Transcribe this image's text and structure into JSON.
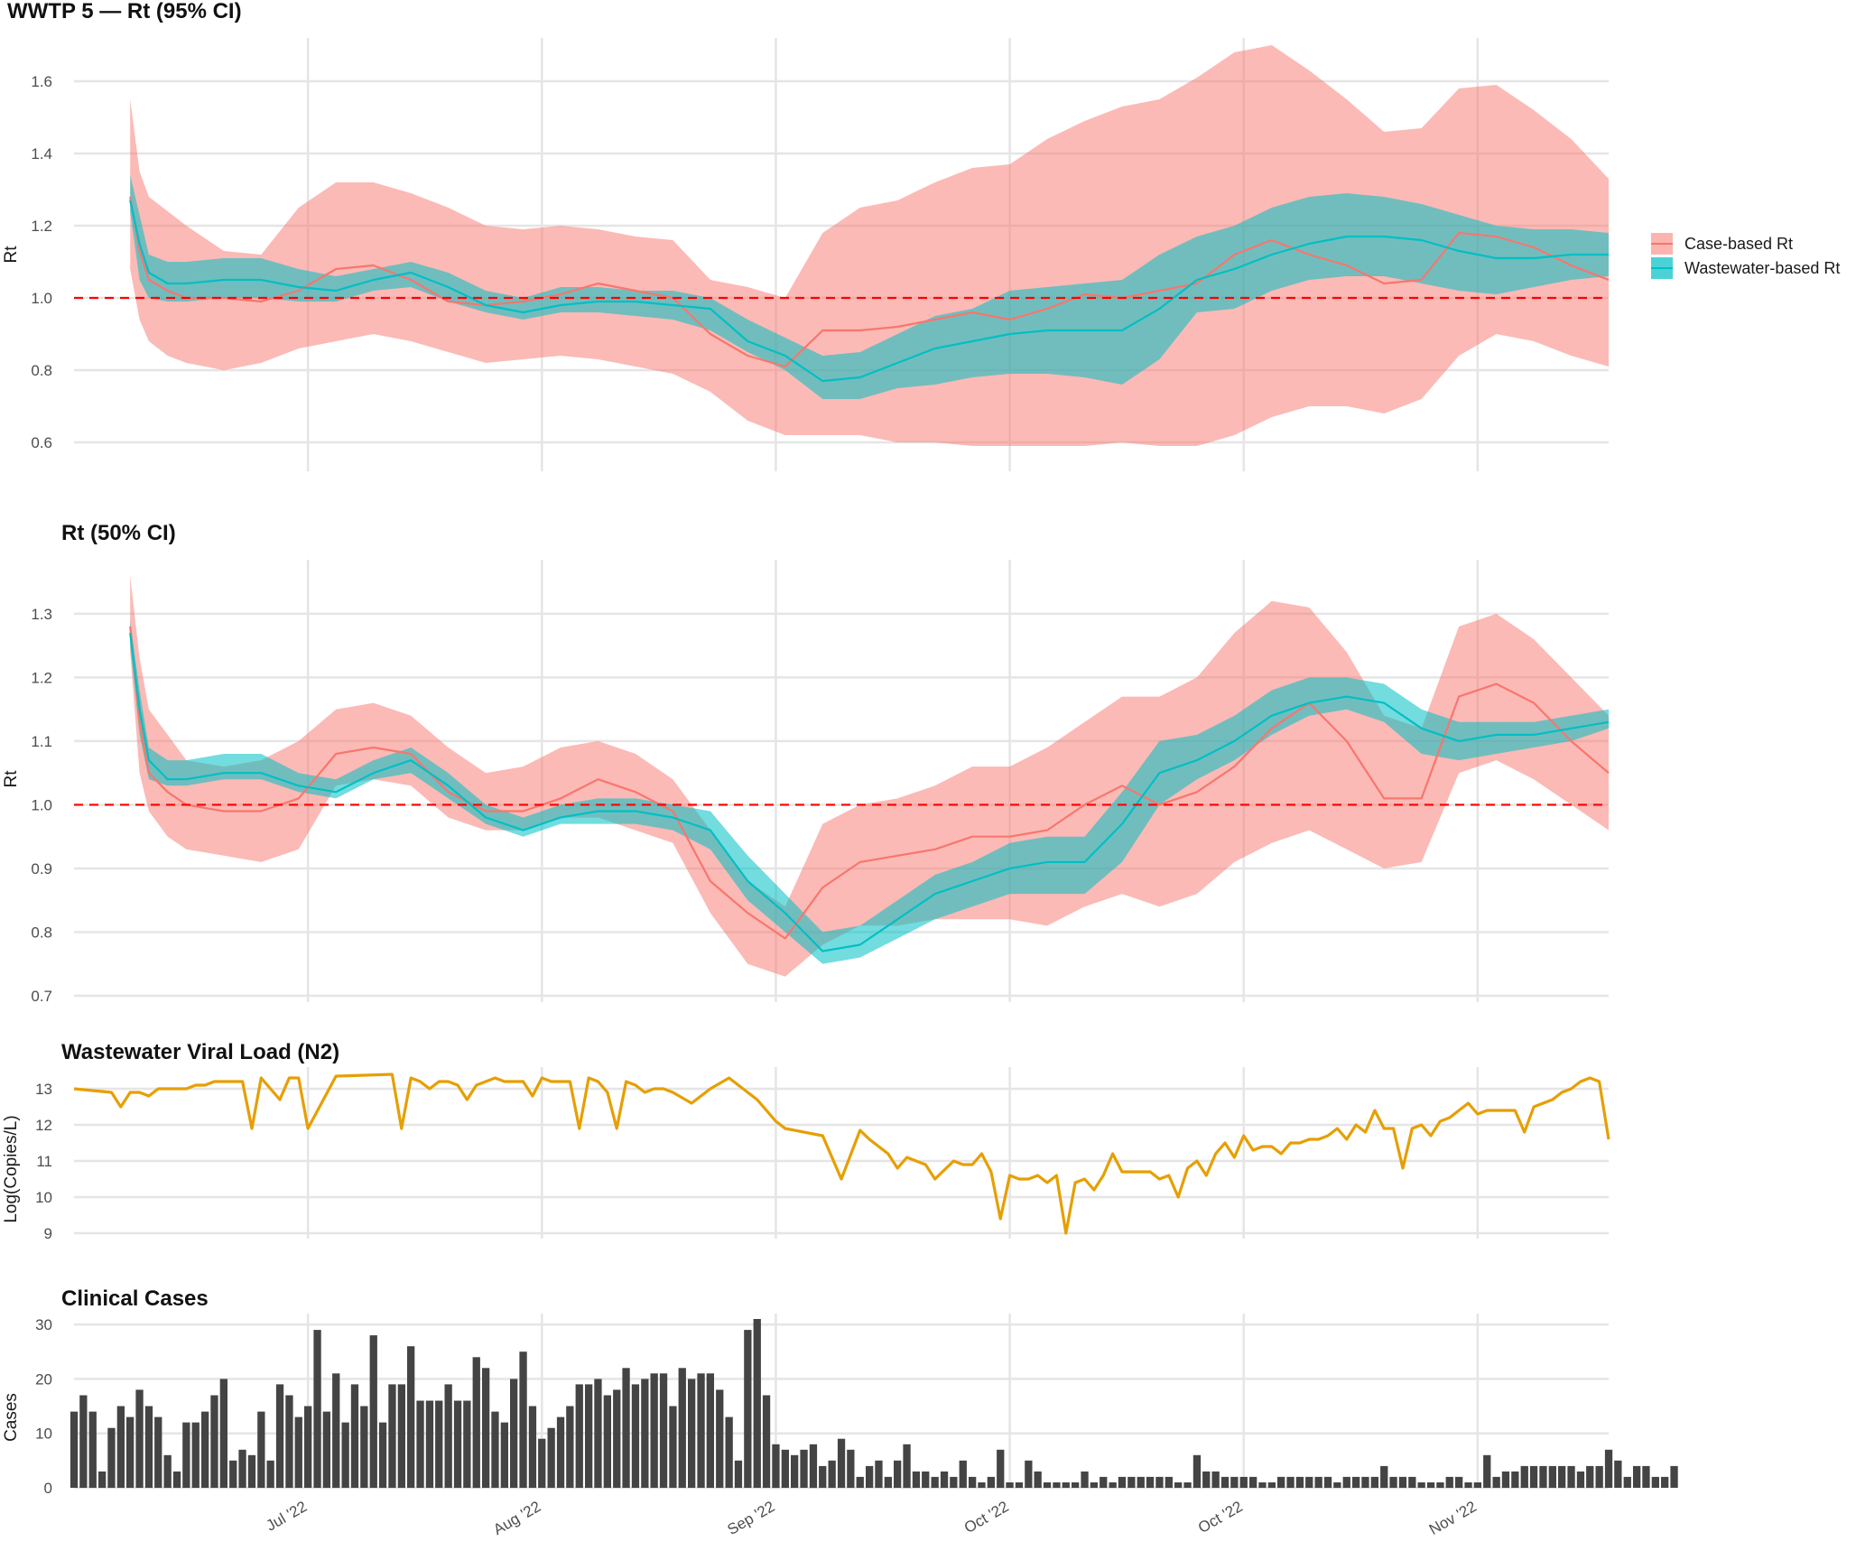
{
  "colors": {
    "case": "#F8766D",
    "case_band": "#F8766D",
    "wastewater": "#00BFC4",
    "threshold": "#FF0000",
    "viral": "#E69F00",
    "bars": "#444444",
    "grid": "#E5E5E5"
  },
  "legend": {
    "items": [
      {
        "label": "Case-based Rt",
        "color": "#F8766D"
      },
      {
        "label": "Wastewater-based Rt",
        "color": "#00BFC4"
      }
    ],
    "position": "right"
  },
  "x_axis": {
    "ticks": [
      {
        "day": 25,
        "label": "Jul '22"
      },
      {
        "day": 50,
        "label": "Aug '22"
      },
      {
        "day": 75,
        "label": "Sep '22"
      },
      {
        "day": 100,
        "label": "Oct '22"
      },
      {
        "day": 125,
        "label": "Oct '22"
      },
      {
        "day": 150,
        "label": "Nov '22"
      }
    ],
    "range": [
      0,
      164
    ]
  },
  "chart_data": [
    {
      "type": "line",
      "title": "WWTP 5 — Rt (95% CI)",
      "ylabel": "Rt",
      "ylim": [
        0.52,
        1.72
      ],
      "yticks": [
        "0.6",
        "0.8",
        "1.0",
        "1.2",
        "1.4",
        "1.6"
      ],
      "threshold": 1.0,
      "grid": true,
      "x": [
        6,
        7,
        8,
        10,
        12,
        16,
        20,
        24,
        28,
        32,
        36,
        40,
        44,
        48,
        52,
        56,
        60,
        64,
        68,
        72,
        76,
        80,
        84,
        88,
        92,
        96,
        100,
        104,
        108,
        112,
        116,
        120,
        124,
        128,
        132,
        136,
        140,
        144,
        148,
        152,
        156,
        160,
        164
      ],
      "series": [
        {
          "name": "Case-based Rt",
          "band": true,
          "values": [
            1.28,
            1.13,
            1.05,
            1.02,
            1.0,
            1.0,
            0.99,
            1.02,
            1.08,
            1.09,
            1.05,
            0.99,
            0.98,
            0.99,
            1.01,
            1.04,
            1.02,
            1.0,
            0.9,
            0.84,
            0.81,
            0.91,
            0.91,
            0.92,
            0.94,
            0.96,
            0.94,
            0.97,
            1.01,
            1.0,
            1.02,
            1.04,
            1.12,
            1.16,
            1.12,
            1.09,
            1.04,
            1.05,
            1.18,
            1.17,
            1.14,
            1.09,
            1.05
          ],
          "lower": [
            1.08,
            0.94,
            0.88,
            0.84,
            0.82,
            0.8,
            0.82,
            0.86,
            0.88,
            0.9,
            0.88,
            0.85,
            0.82,
            0.83,
            0.84,
            0.83,
            0.81,
            0.79,
            0.74,
            0.66,
            0.62,
            0.62,
            0.62,
            0.6,
            0.6,
            0.59,
            0.59,
            0.59,
            0.59,
            0.6,
            0.59,
            0.59,
            0.62,
            0.67,
            0.7,
            0.7,
            0.68,
            0.72,
            0.84,
            0.9,
            0.88,
            0.84,
            0.81
          ],
          "upper": [
            1.55,
            1.35,
            1.28,
            1.24,
            1.2,
            1.13,
            1.12,
            1.25,
            1.32,
            1.32,
            1.29,
            1.25,
            1.2,
            1.19,
            1.2,
            1.19,
            1.17,
            1.16,
            1.05,
            1.03,
            1.0,
            1.18,
            1.25,
            1.27,
            1.32,
            1.36,
            1.37,
            1.44,
            1.49,
            1.53,
            1.55,
            1.61,
            1.68,
            1.7,
            1.63,
            1.55,
            1.46,
            1.47,
            1.58,
            1.59,
            1.52,
            1.44,
            1.33
          ]
        },
        {
          "name": "Wastewater-based Rt",
          "band": true,
          "values": [
            1.27,
            1.15,
            1.07,
            1.04,
            1.04,
            1.05,
            1.05,
            1.03,
            1.02,
            1.05,
            1.07,
            1.03,
            0.98,
            0.96,
            0.98,
            0.99,
            0.99,
            0.98,
            0.97,
            0.88,
            0.84,
            0.77,
            0.78,
            0.82,
            0.86,
            0.88,
            0.9,
            0.91,
            0.91,
            0.91,
            0.97,
            1.05,
            1.08,
            1.12,
            1.15,
            1.17,
            1.17,
            1.16,
            1.13,
            1.11,
            1.11,
            1.12,
            1.12
          ],
          "lower": [
            1.24,
            1.05,
            1.0,
            0.99,
            0.99,
            1.0,
            1.0,
            0.99,
            0.99,
            1.02,
            1.03,
            0.99,
            0.96,
            0.94,
            0.96,
            0.96,
            0.95,
            0.94,
            0.91,
            0.85,
            0.8,
            0.72,
            0.72,
            0.75,
            0.76,
            0.78,
            0.79,
            0.79,
            0.78,
            0.76,
            0.83,
            0.96,
            0.97,
            1.02,
            1.05,
            1.06,
            1.06,
            1.04,
            1.02,
            1.01,
            1.03,
            1.05,
            1.06
          ],
          "upper": [
            1.34,
            1.23,
            1.12,
            1.1,
            1.1,
            1.11,
            1.11,
            1.08,
            1.06,
            1.08,
            1.1,
            1.07,
            1.02,
            1.0,
            1.03,
            1.03,
            1.02,
            1.02,
            1.0,
            0.94,
            0.89,
            0.84,
            0.85,
            0.9,
            0.95,
            0.97,
            1.02,
            1.03,
            1.04,
            1.05,
            1.12,
            1.17,
            1.2,
            1.25,
            1.28,
            1.29,
            1.28,
            1.26,
            1.23,
            1.2,
            1.19,
            1.19,
            1.18
          ]
        }
      ]
    },
    {
      "type": "line",
      "title": "Rt (50% CI)",
      "ylabel": "Rt",
      "ylim": [
        0.69,
        1.385
      ],
      "yticks": [
        "0.7",
        "0.8",
        "0.9",
        "1.0",
        "1.1",
        "1.2",
        "1.3"
      ],
      "threshold": 1.0,
      "grid": true,
      "x": [
        6,
        7,
        8,
        10,
        12,
        16,
        20,
        24,
        28,
        32,
        36,
        40,
        44,
        48,
        52,
        56,
        60,
        64,
        68,
        72,
        76,
        80,
        84,
        88,
        92,
        96,
        100,
        104,
        108,
        112,
        116,
        120,
        124,
        128,
        132,
        136,
        140,
        144,
        148,
        152,
        156,
        160,
        164
      ],
      "series": [
        {
          "name": "Case-based Rt",
          "band": true,
          "values": [
            1.28,
            1.13,
            1.05,
            1.02,
            1.0,
            0.99,
            0.99,
            1.01,
            1.08,
            1.09,
            1.08,
            1.02,
            0.99,
            0.99,
            1.01,
            1.04,
            1.02,
            0.99,
            0.88,
            0.83,
            0.79,
            0.87,
            0.91,
            0.92,
            0.93,
            0.95,
            0.95,
            0.96,
            1.0,
            1.03,
            1.0,
            1.02,
            1.06,
            1.12,
            1.16,
            1.1,
            1.01,
            1.01,
            1.17,
            1.19,
            1.16,
            1.1,
            1.05
          ],
          "lower": [
            1.24,
            1.05,
            0.99,
            0.95,
            0.93,
            0.92,
            0.91,
            0.93,
            1.03,
            1.04,
            1.03,
            0.98,
            0.96,
            0.96,
            0.98,
            0.98,
            0.96,
            0.94,
            0.83,
            0.75,
            0.73,
            0.78,
            0.81,
            0.81,
            0.82,
            0.82,
            0.82,
            0.81,
            0.84,
            0.86,
            0.84,
            0.86,
            0.91,
            0.94,
            0.96,
            0.93,
            0.9,
            0.91,
            1.05,
            1.07,
            1.04,
            1.0,
            0.96
          ],
          "upper": [
            1.36,
            1.23,
            1.15,
            1.11,
            1.07,
            1.06,
            1.07,
            1.1,
            1.15,
            1.16,
            1.14,
            1.09,
            1.05,
            1.06,
            1.09,
            1.1,
            1.08,
            1.04,
            0.96,
            0.88,
            0.84,
            0.97,
            1.0,
            1.01,
            1.03,
            1.06,
            1.06,
            1.09,
            1.13,
            1.17,
            1.17,
            1.2,
            1.27,
            1.32,
            1.31,
            1.24,
            1.14,
            1.12,
            1.28,
            1.3,
            1.26,
            1.2,
            1.14
          ]
        },
        {
          "name": "Wastewater-based Rt",
          "band": true,
          "values": [
            1.27,
            1.15,
            1.07,
            1.04,
            1.04,
            1.05,
            1.05,
            1.03,
            1.02,
            1.05,
            1.07,
            1.03,
            0.98,
            0.96,
            0.98,
            0.99,
            0.99,
            0.98,
            0.96,
            0.88,
            0.83,
            0.77,
            0.78,
            0.82,
            0.86,
            0.88,
            0.9,
            0.91,
            0.91,
            0.97,
            1.05,
            1.07,
            1.1,
            1.14,
            1.16,
            1.17,
            1.16,
            1.12,
            1.1,
            1.11,
            1.11,
            1.12,
            1.13
          ],
          "lower": [
            1.25,
            1.11,
            1.04,
            1.03,
            1.03,
            1.04,
            1.04,
            1.02,
            1.01,
            1.04,
            1.05,
            1.01,
            0.97,
            0.95,
            0.97,
            0.97,
            0.97,
            0.96,
            0.93,
            0.85,
            0.8,
            0.75,
            0.76,
            0.79,
            0.82,
            0.84,
            0.86,
            0.86,
            0.86,
            0.91,
            1.0,
            1.04,
            1.07,
            1.11,
            1.14,
            1.15,
            1.13,
            1.08,
            1.07,
            1.08,
            1.09,
            1.1,
            1.12
          ],
          "upper": [
            1.29,
            1.18,
            1.09,
            1.07,
            1.07,
            1.08,
            1.08,
            1.05,
            1.04,
            1.07,
            1.09,
            1.05,
            1.0,
            0.98,
            1.0,
            1.01,
            1.01,
            1.0,
            0.99,
            0.92,
            0.86,
            0.8,
            0.81,
            0.85,
            0.89,
            0.91,
            0.94,
            0.95,
            0.95,
            1.02,
            1.1,
            1.11,
            1.14,
            1.18,
            1.2,
            1.2,
            1.19,
            1.15,
            1.13,
            1.13,
            1.13,
            1.14,
            1.15
          ]
        }
      ]
    },
    {
      "type": "line",
      "title": "Wastewater Viral Load (N2)",
      "ylabel": "Log(Copies/L)",
      "ylim": [
        8.85,
        13.6
      ],
      "yticks": [
        "9",
        "10",
        "11",
        "12",
        "13"
      ],
      "grid": true,
      "x": [
        0,
        4,
        5,
        6,
        7,
        8,
        9,
        10,
        11,
        12,
        13,
        14,
        15,
        16,
        17,
        18,
        19,
        20,
        22,
        23,
        24,
        25,
        28,
        34,
        35,
        36,
        37,
        38,
        39,
        40,
        41,
        42,
        43,
        44,
        45,
        46,
        47,
        48,
        49,
        50,
        51,
        52,
        53,
        54,
        55,
        56,
        57,
        58,
        59,
        60,
        61,
        62,
        63,
        64,
        66,
        68,
        70,
        72,
        73,
        74,
        75,
        76,
        80,
        82,
        84,
        85,
        86,
        87,
        88,
        89,
        90,
        91,
        92,
        94,
        95,
        96,
        97,
        98,
        99,
        100,
        101,
        102,
        103,
        104,
        105,
        106,
        107,
        108,
        109,
        110,
        111,
        112,
        113,
        114,
        115,
        116,
        117,
        118,
        119,
        120,
        121,
        122,
        123,
        124,
        125,
        126,
        127,
        128,
        129,
        130,
        131,
        132,
        133,
        134,
        135,
        136,
        137,
        138,
        139,
        140,
        141,
        142,
        143,
        144,
        145,
        146,
        147,
        148,
        149,
        150,
        151,
        152,
        153,
        154,
        155,
        156,
        157,
        158,
        159,
        160,
        161,
        162,
        163,
        164
      ],
      "series": [
        {
          "name": "",
          "values": [
            13.0,
            12.9,
            12.5,
            12.9,
            12.9,
            12.8,
            13.0,
            13.0,
            13.0,
            13.0,
            13.1,
            13.1,
            13.2,
            13.2,
            13.2,
            13.2,
            11.9,
            13.3,
            12.7,
            13.3,
            13.3,
            11.9,
            13.35,
            13.4,
            11.9,
            13.3,
            13.2,
            13.0,
            13.2,
            13.2,
            13.1,
            12.7,
            13.1,
            13.2,
            13.3,
            13.2,
            13.2,
            13.2,
            12.8,
            13.3,
            13.2,
            13.2,
            13.2,
            11.9,
            13.3,
            13.2,
            12.9,
            11.9,
            13.2,
            13.1,
            12.9,
            13.0,
            13.0,
            12.9,
            12.6,
            13.0,
            13.3,
            12.9,
            12.7,
            12.4,
            12.1,
            11.9,
            11.7,
            10.5,
            11.85,
            11.6,
            11.4,
            11.2,
            10.8,
            11.1,
            11.0,
            10.9,
            10.5,
            11.0,
            10.9,
            10.9,
            11.2,
            10.7,
            9.4,
            10.6,
            10.5,
            10.5,
            10.6,
            10.4,
            10.6,
            9.0,
            10.4,
            10.5,
            10.2,
            10.6,
            11.2,
            10.7,
            10.7,
            10.7,
            10.7,
            10.5,
            10.6,
            10.0,
            10.8,
            11.0,
            10.6,
            11.2,
            11.5,
            11.1,
            11.7,
            11.3,
            11.4,
            11.4,
            11.2,
            11.5,
            11.5,
            11.6,
            11.6,
            11.7,
            11.9,
            11.6,
            12.0,
            11.8,
            12.4,
            11.9,
            11.9,
            10.8,
            11.9,
            12.0,
            11.7,
            12.1,
            12.2,
            12.4,
            12.6,
            12.3,
            12.4,
            12.4,
            12.4,
            12.4,
            11.8,
            12.5,
            12.6,
            12.7,
            12.9,
            13.0,
            13.2,
            13.3,
            13.2,
            11.6
          ]
        }
      ]
    },
    {
      "type": "bar",
      "title": "Clinical Cases",
      "ylabel": "Cases",
      "ylim": [
        0,
        32
      ],
      "yticks": [
        "0",
        "10",
        "20",
        "30"
      ],
      "grid": true,
      "x_start": 0,
      "values": [
        14,
        17,
        14,
        3,
        11,
        15,
        13,
        18,
        15,
        13,
        6,
        3,
        12,
        12,
        14,
        17,
        20,
        5,
        7,
        6,
        14,
        5,
        19,
        17,
        13,
        15,
        29,
        14,
        21,
        12,
        19,
        15,
        28,
        12,
        19,
        19,
        26,
        16,
        16,
        16,
        19,
        16,
        16,
        24,
        22,
        14,
        12,
        20,
        25,
        15,
        9,
        11,
        13,
        15,
        19,
        19,
        20,
        17,
        18,
        22,
        19,
        20,
        21,
        21,
        15,
        22,
        20,
        21,
        21,
        18,
        13,
        5,
        29,
        31,
        17,
        8,
        7,
        6,
        7,
        8,
        4,
        5,
        9,
        7,
        2,
        4,
        5,
        2,
        5,
        8,
        3,
        3,
        2,
        3,
        2,
        5,
        2,
        1,
        2,
        7,
        1,
        1,
        5,
        3,
        1,
        1,
        1,
        1,
        3,
        1,
        2,
        1,
        2,
        2,
        2,
        2,
        2,
        2,
        1,
        1,
        6,
        3,
        3,
        2,
        2,
        2,
        2,
        1,
        1,
        2,
        2,
        2,
        2,
        2,
        2,
        1,
        2,
        2,
        2,
        2,
        4,
        2,
        2,
        2,
        1,
        1,
        1,
        2,
        2,
        1,
        1,
        6,
        2,
        3,
        3,
        4,
        4,
        4,
        4,
        4,
        4,
        3,
        4,
        4,
        7,
        5,
        2,
        4,
        4,
        2,
        2,
        4
      ]
    }
  ]
}
